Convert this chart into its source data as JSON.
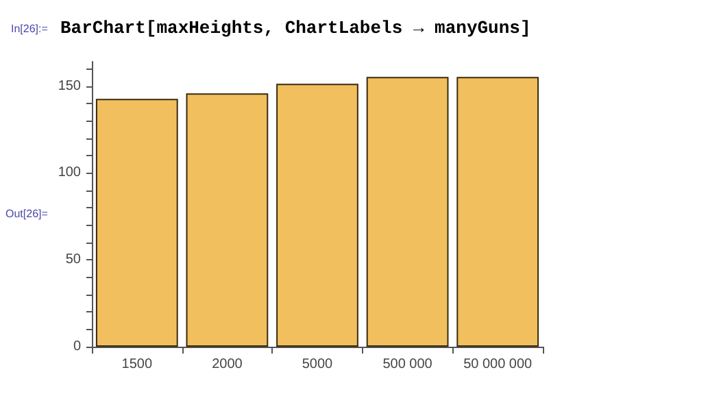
{
  "chart_data": {
    "type": "bar",
    "title": "BarChart[maxHeights, ChartLabels → manyGuns]",
    "annotations": [
      "In[26]:=",
      "Out[26]="
    ],
    "categories": [
      "1500",
      "2000",
      "5000",
      "500 000",
      "50 000 000"
    ],
    "values": [
      142.6,
      145.8,
      151.3,
      155.2,
      155.2
    ],
    "color": "#f2bf5e",
    "ylim": [
      0,
      164
    ],
    "yticks": [
      0,
      {
        "value": 10,
        "label": null
      },
      {
        "value": 20,
        "label": null
      },
      {
        "value": 30,
        "label": null
      },
      {
        "value": 40,
        "label": null
      },
      50,
      {
        "value": 60,
        "label": null
      },
      {
        "value": 70,
        "label": null
      },
      {
        "value": 80,
        "label": null
      },
      {
        "value": 90,
        "label": null
      },
      100,
      {
        "value": 110,
        "label": null
      },
      {
        "value": 120,
        "label": null
      },
      {
        "value": 130,
        "label": null
      },
      {
        "value": 140,
        "label": null
      },
      150,
      {
        "value": 160,
        "label": null
      }
    ],
    "grid": false
  }
}
